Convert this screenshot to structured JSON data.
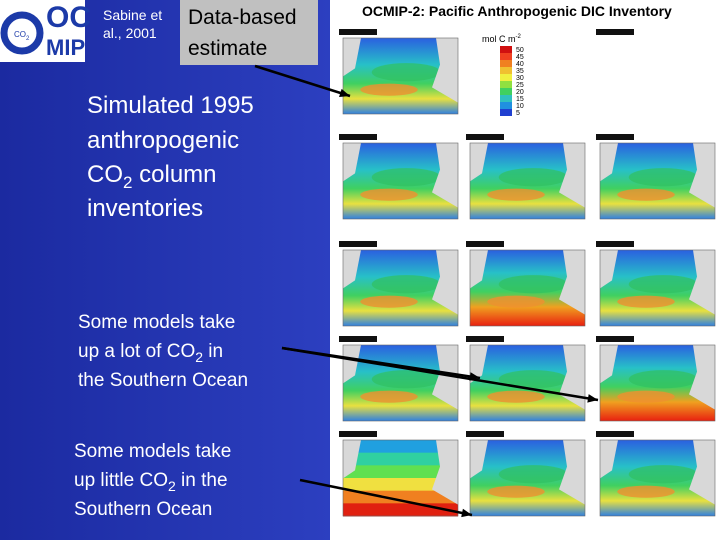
{
  "logo": {
    "top": "OC",
    "bottom": "MIP",
    "badge": "CO",
    "badge_sub": "2"
  },
  "citation": [
    "Sabine et",
    "al., 2001"
  ],
  "callout": [
    "Data-based",
    "estimate"
  ],
  "simulated": {
    "line1": "Simulated 1995",
    "line2": "anthropogenic",
    "line3_pre": "CO",
    "line3_sub": "2",
    "line3_post": " column",
    "line4": "inventories"
  },
  "note_high": {
    "line1": "Some models take",
    "line2_pre": "up a lot of CO",
    "line2_sub": "2",
    "line2_post": " in",
    "line3": "the Southern Ocean"
  },
  "note_low": {
    "line1": "Some models take",
    "line2_pre": "up little CO",
    "line2_sub": "2",
    "line2_post": " in the",
    "line3": "Southern Ocean"
  },
  "figure": {
    "title": "OCMIP-2: Pacific Anthropogenic DIC Inventory",
    "unit": "mol C m",
    "unit_sup": "-2",
    "scale": [
      50,
      45,
      40,
      35,
      30,
      25,
      20,
      15,
      10,
      5
    ]
  }
}
